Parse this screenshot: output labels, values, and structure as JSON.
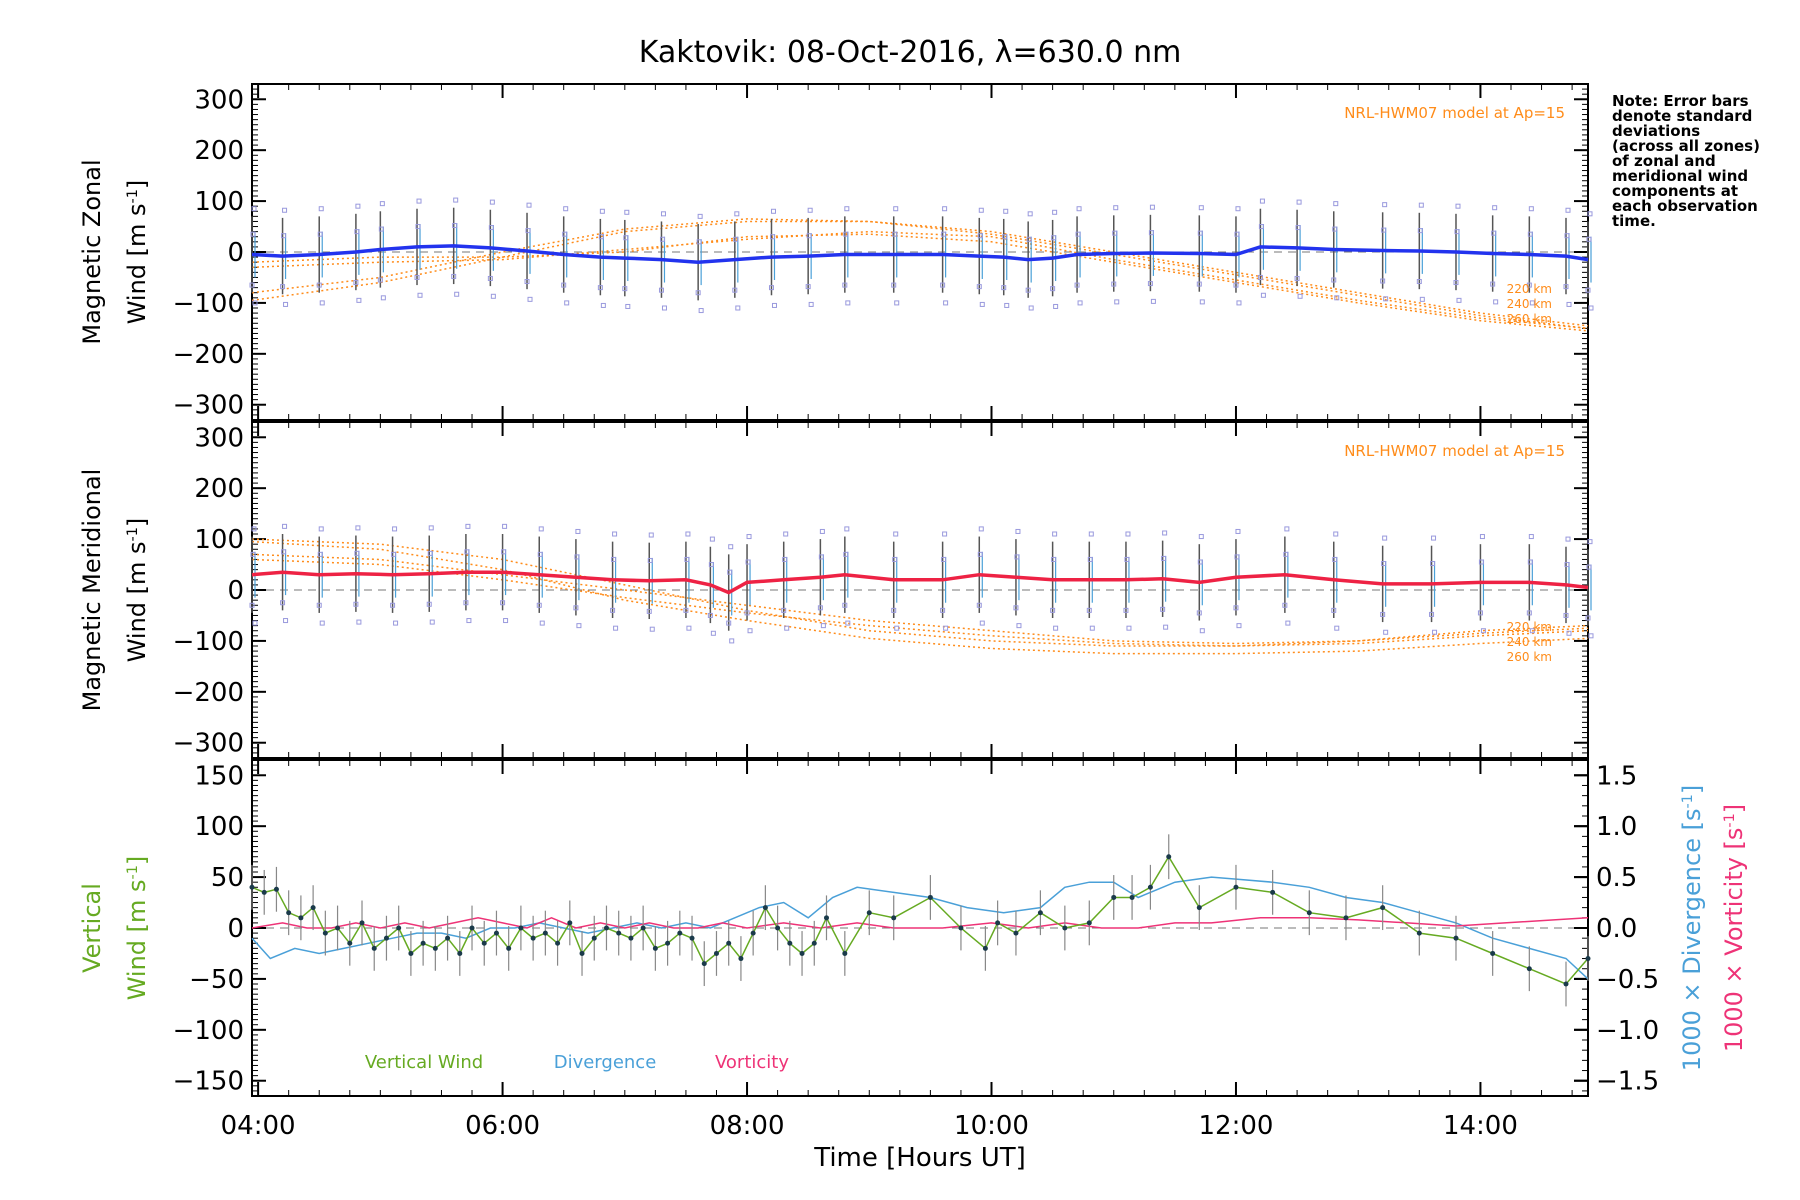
{
  "title": "Kaktovik: 08-Oct-2016, λ=630.0 nm",
  "note": "Note: Error bars\ndenote standard\ndeviations\n(across all zones)\nof zonal and\nmeridional wind\ncomponents at\neach observation\ntime.",
  "colors": {
    "zonal": "#2233ee",
    "meridional": "#ee2244",
    "model": "#ff8c1a",
    "samples": "#9999dd",
    "vertical": "#66aa22",
    "divergence": "#4aa0d8",
    "vorticity": "#ee3377",
    "errorbar": "#555555"
  },
  "chart_data": [
    {
      "type": "line",
      "panel": "zonal",
      "ylabel_line1": "Magnetic Zonal",
      "ylabel_line2": "Wind [m s",
      "ylabel_sup": "-1",
      "ylabel_end": "]",
      "ylim": [
        -330,
        330
      ],
      "yticks": [
        -300,
        -200,
        -100,
        0,
        100,
        200,
        300
      ],
      "xlim": [
        3.95,
        14.88
      ],
      "model_label": "NRL-HWM07 model at Ap=15",
      "altitude_labels": [
        "220 km",
        "240 km",
        "260 km"
      ],
      "series": [
        {
          "kind": "wind",
          "x": [
            3.95,
            4.2,
            4.5,
            4.8,
            5.0,
            5.3,
            5.6,
            5.9,
            6.2,
            6.5,
            6.8,
            7.0,
            7.3,
            7.6,
            7.9,
            8.2,
            8.5,
            8.8,
            9.2,
            9.6,
            9.9,
            10.1,
            10.3,
            10.5,
            10.7,
            11.0,
            11.3,
            11.7,
            12.0,
            12.2,
            12.5,
            12.8,
            13.2,
            13.5,
            13.8,
            14.1,
            14.4,
            14.7,
            14.88
          ],
          "y": [
            -5,
            -8,
            -5,
            0,
            5,
            10,
            12,
            8,
            2,
            -5,
            -10,
            -12,
            -15,
            -20,
            -15,
            -10,
            -8,
            -5,
            -5,
            -5,
            -8,
            -10,
            -15,
            -12,
            -5,
            -3,
            -2,
            -3,
            -5,
            10,
            8,
            5,
            3,
            2,
            0,
            -3,
            -5,
            -8,
            -15
          ]
        },
        {
          "kind": "model",
          "x": [
            3.95,
            5.0,
            6.0,
            7.0,
            8.0,
            9.0,
            10.0,
            11.0,
            12.0,
            13.0,
            14.0,
            14.88
          ],
          "y": [
            -95,
            -60,
            -10,
            40,
            60,
            60,
            40,
            0,
            -40,
            -80,
            -120,
            -145
          ]
        },
        {
          "kind": "model",
          "x": [
            3.95,
            5.0,
            6.0,
            7.0,
            8.0,
            9.0,
            10.0,
            11.0,
            12.0,
            13.0,
            14.0,
            14.88
          ],
          "y": [
            -80,
            -50,
            0,
            45,
            65,
            60,
            35,
            -5,
            -45,
            -85,
            -125,
            -150
          ]
        },
        {
          "kind": "model",
          "x": [
            3.95,
            5.0,
            6.0,
            7.0,
            8.0,
            9.0,
            10.0,
            11.0,
            12.0,
            13.0,
            14.0,
            14.88
          ],
          "y": [
            -20,
            -10,
            -10,
            0,
            30,
            35,
            20,
            -20,
            -60,
            -100,
            -135,
            -155
          ]
        },
        {
          "kind": "model",
          "x": [
            3.95,
            5.0,
            6.0,
            7.0,
            8.0,
            9.0,
            10.0,
            11.0,
            12.0,
            13.0,
            14.0,
            14.88
          ],
          "y": [
            -30,
            -20,
            -15,
            5,
            25,
            40,
            30,
            -15,
            -55,
            -95,
            -130,
            -150
          ]
        }
      ]
    },
    {
      "type": "line",
      "panel": "meridional",
      "ylabel_line1": "Magnetic Meridional",
      "ylabel_line2": "Wind [m s",
      "ylabel_sup": "-1",
      "ylabel_end": "]",
      "ylim": [
        -330,
        330
      ],
      "yticks": [
        -300,
        -200,
        -100,
        0,
        100,
        200,
        300
      ],
      "xlim": [
        3.95,
        14.88
      ],
      "model_label": "NRL-HWM07 model at Ap=15",
      "altitude_labels": [
        "220 km",
        "240 km",
        "260 km"
      ],
      "series": [
        {
          "kind": "wind",
          "x": [
            3.95,
            4.2,
            4.5,
            4.8,
            5.1,
            5.4,
            5.7,
            6.0,
            6.3,
            6.6,
            6.9,
            7.2,
            7.5,
            7.7,
            7.85,
            8.0,
            8.3,
            8.6,
            8.8,
            9.2,
            9.6,
            9.9,
            10.2,
            10.5,
            10.8,
            11.1,
            11.4,
            11.7,
            12.0,
            12.4,
            12.8,
            13.2,
            13.6,
            14.0,
            14.4,
            14.7,
            14.88
          ],
          "y": [
            30,
            35,
            30,
            32,
            30,
            32,
            35,
            35,
            30,
            25,
            20,
            18,
            20,
            10,
            -5,
            15,
            20,
            25,
            30,
            20,
            20,
            30,
            25,
            20,
            20,
            20,
            22,
            15,
            25,
            30,
            20,
            12,
            12,
            15,
            15,
            10,
            5
          ]
        },
        {
          "kind": "model",
          "x": [
            3.95,
            5.0,
            6.0,
            7.0,
            8.0,
            9.0,
            10.0,
            11.0,
            12.0,
            13.0,
            14.0,
            14.88
          ],
          "y": [
            95,
            80,
            40,
            -20,
            -60,
            -95,
            -115,
            -125,
            -125,
            -120,
            -105,
            -95
          ]
        },
        {
          "kind": "model",
          "x": [
            3.95,
            5.0,
            6.0,
            7.0,
            8.0,
            9.0,
            10.0,
            11.0,
            12.0,
            13.0,
            14.0,
            14.88
          ],
          "y": [
            100,
            90,
            60,
            10,
            -40,
            -80,
            -100,
            -110,
            -110,
            -100,
            -80,
            -70
          ]
        },
        {
          "kind": "model",
          "x": [
            3.95,
            5.0,
            6.0,
            7.0,
            8.0,
            9.0,
            10.0,
            11.0,
            12.0,
            13.0,
            14.0,
            14.88
          ],
          "y": [
            70,
            60,
            30,
            0,
            -30,
            -60,
            -80,
            -100,
            -105,
            -100,
            -85,
            -75
          ]
        },
        {
          "kind": "model",
          "x": [
            3.95,
            5.0,
            6.0,
            7.0,
            8.0,
            9.0,
            10.0,
            11.0,
            12.0,
            13.0,
            14.0,
            14.88
          ],
          "y": [
            60,
            50,
            20,
            -15,
            -45,
            -70,
            -90,
            -105,
            -110,
            -105,
            -90,
            -80
          ]
        }
      ]
    },
    {
      "type": "line",
      "panel": "vertical",
      "ylabel_line1": "Vertical",
      "ylabel_line2": "Wind [m s",
      "ylabel_sup": "-1",
      "ylabel_end": "]",
      "ylim": [
        -165,
        165
      ],
      "yticks": [
        -150,
        -100,
        -50,
        0,
        50,
        100,
        150
      ],
      "y2label_a_line": "1000 × Divergence [s",
      "y2label_b_line": "1000 × Vorticity [s",
      "y2_sup": "-1",
      "y2_end": "]",
      "y2lim": [
        -1.65,
        1.65
      ],
      "y2ticks": [
        -1.5,
        -1.0,
        -0.5,
        0.0,
        0.5,
        1.0,
        1.5
      ],
      "y2ticklabels": [
        "−1.5",
        "−1.0",
        "−0.5",
        "0.0",
        "0.5",
        "1.0",
        "1.5"
      ],
      "xlim": [
        3.95,
        14.88
      ],
      "xticks": [
        4,
        6,
        8,
        10,
        12,
        14
      ],
      "xticklabels": [
        "04:00",
        "06:00",
        "08:00",
        "10:00",
        "12:00",
        "14:00"
      ],
      "xlabel": "Time [Hours UT]",
      "legend": [
        "Vertical Wind",
        "Divergence",
        "Vorticity"
      ],
      "series": [
        {
          "name": "Vertical Wind",
          "axis": "left",
          "x": [
            3.95,
            4.05,
            4.15,
            4.25,
            4.35,
            4.45,
            4.55,
            4.65,
            4.75,
            4.85,
            4.95,
            5.05,
            5.15,
            5.25,
            5.35,
            5.45,
            5.55,
            5.65,
            5.75,
            5.85,
            5.95,
            6.05,
            6.15,
            6.25,
            6.35,
            6.45,
            6.55,
            6.65,
            6.75,
            6.85,
            6.95,
            7.05,
            7.15,
            7.25,
            7.35,
            7.45,
            7.55,
            7.65,
            7.75,
            7.85,
            7.95,
            8.05,
            8.15,
            8.25,
            8.35,
            8.45,
            8.55,
            8.65,
            8.8,
            9.0,
            9.2,
            9.5,
            9.75,
            9.95,
            10.05,
            10.2,
            10.4,
            10.6,
            10.8,
            11.0,
            11.15,
            11.3,
            11.45,
            11.7,
            12.0,
            12.3,
            12.6,
            12.9,
            13.2,
            13.5,
            13.8,
            14.1,
            14.4,
            14.7,
            14.88
          ],
          "y": [
            40,
            35,
            38,
            15,
            10,
            20,
            -5,
            0,
            -15,
            5,
            -20,
            -10,
            0,
            -25,
            -15,
            -20,
            -10,
            -25,
            0,
            -15,
            -5,
            -20,
            0,
            -10,
            -5,
            -15,
            5,
            -25,
            -10,
            0,
            -5,
            -10,
            0,
            -20,
            -15,
            -5,
            -10,
            -35,
            -25,
            -15,
            -30,
            -5,
            20,
            0,
            -15,
            -25,
            -15,
            10,
            -25,
            15,
            10,
            30,
            0,
            -20,
            5,
            -5,
            15,
            0,
            5,
            30,
            30,
            40,
            70,
            20,
            40,
            35,
            15,
            10,
            20,
            -5,
            -10,
            -25,
            -40,
            -55,
            -30
          ]
        },
        {
          "name": "Divergence",
          "axis": "right",
          "x": [
            3.95,
            4.1,
            4.3,
            4.5,
            4.7,
            4.9,
            5.1,
            5.3,
            5.5,
            5.7,
            5.9,
            6.1,
            6.3,
            6.5,
            6.7,
            6.9,
            7.1,
            7.3,
            7.5,
            7.7,
            7.9,
            8.1,
            8.3,
            8.5,
            8.7,
            8.9,
            9.2,
            9.5,
            9.8,
            10.1,
            10.4,
            10.6,
            10.8,
            11.0,
            11.2,
            11.5,
            11.8,
            12.0,
            12.3,
            12.6,
            12.9,
            13.2,
            13.5,
            13.8,
            14.1,
            14.4,
            14.7,
            14.88
          ],
          "y": [
            -0.1,
            -0.3,
            -0.2,
            -0.25,
            -0.2,
            -0.15,
            -0.1,
            -0.05,
            -0.05,
            -0.1,
            0.0,
            0.0,
            0.05,
            0.0,
            -0.05,
            0.0,
            0.05,
            0.0,
            0.05,
            0.0,
            0.1,
            0.2,
            0.25,
            0.1,
            0.3,
            0.4,
            0.35,
            0.3,
            0.2,
            0.15,
            0.2,
            0.4,
            0.45,
            0.45,
            0.3,
            0.45,
            0.5,
            0.48,
            0.45,
            0.4,
            0.3,
            0.25,
            0.15,
            0.05,
            -0.1,
            -0.2,
            -0.3,
            -0.5
          ]
        },
        {
          "name": "Vorticity",
          "axis": "right",
          "x": [
            3.95,
            4.2,
            4.4,
            4.6,
            4.8,
            5.0,
            5.2,
            5.4,
            5.6,
            5.8,
            6.0,
            6.2,
            6.4,
            6.6,
            6.8,
            7.0,
            7.2,
            7.4,
            7.6,
            7.8,
            8.0,
            8.3,
            8.6,
            8.9,
            9.2,
            9.6,
            10.0,
            10.3,
            10.6,
            10.9,
            11.2,
            11.5,
            11.8,
            12.2,
            12.6,
            13.0,
            13.4,
            13.8,
            14.2,
            14.6,
            14.88
          ],
          "y": [
            0.0,
            0.05,
            0.0,
            0.0,
            0.05,
            0.0,
            0.05,
            0.0,
            0.05,
            0.1,
            0.05,
            0.0,
            0.1,
            0.0,
            0.05,
            0.0,
            0.05,
            0.0,
            0.0,
            0.05,
            0.0,
            0.05,
            0.0,
            0.05,
            0.0,
            0.0,
            0.05,
            0.0,
            0.05,
            0.0,
            0.0,
            0.05,
            0.05,
            0.1,
            0.1,
            0.08,
            0.05,
            0.02,
            0.05,
            0.08,
            0.1
          ]
        }
      ]
    }
  ]
}
